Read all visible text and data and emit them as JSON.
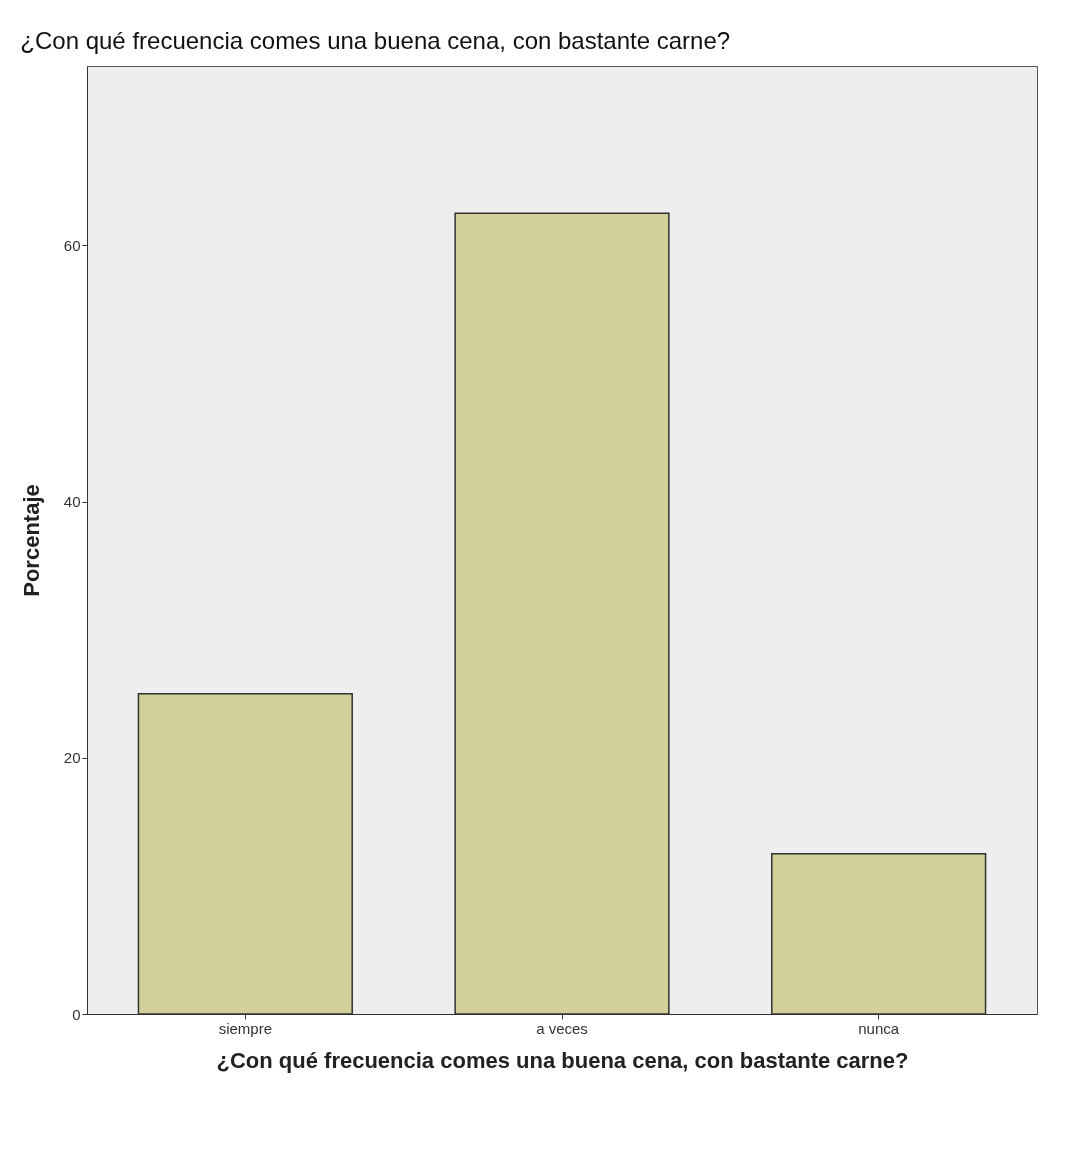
{
  "chart_data": {
    "type": "bar",
    "title": "¿Con qué frecuencia comes una buena cena, con bastante carne?",
    "xlabel": "¿Con qué frecuencia comes una buena cena, con bastante carne?",
    "ylabel": "Porcentaje",
    "categories": [
      "siempre",
      "a veces",
      "nunca"
    ],
    "values": [
      25,
      62.5,
      12.5
    ],
    "color": "#d3cf9b",
    "ylim": [
      0,
      74
    ],
    "yticks": [
      0,
      20,
      40,
      60
    ],
    "grid": false
  }
}
